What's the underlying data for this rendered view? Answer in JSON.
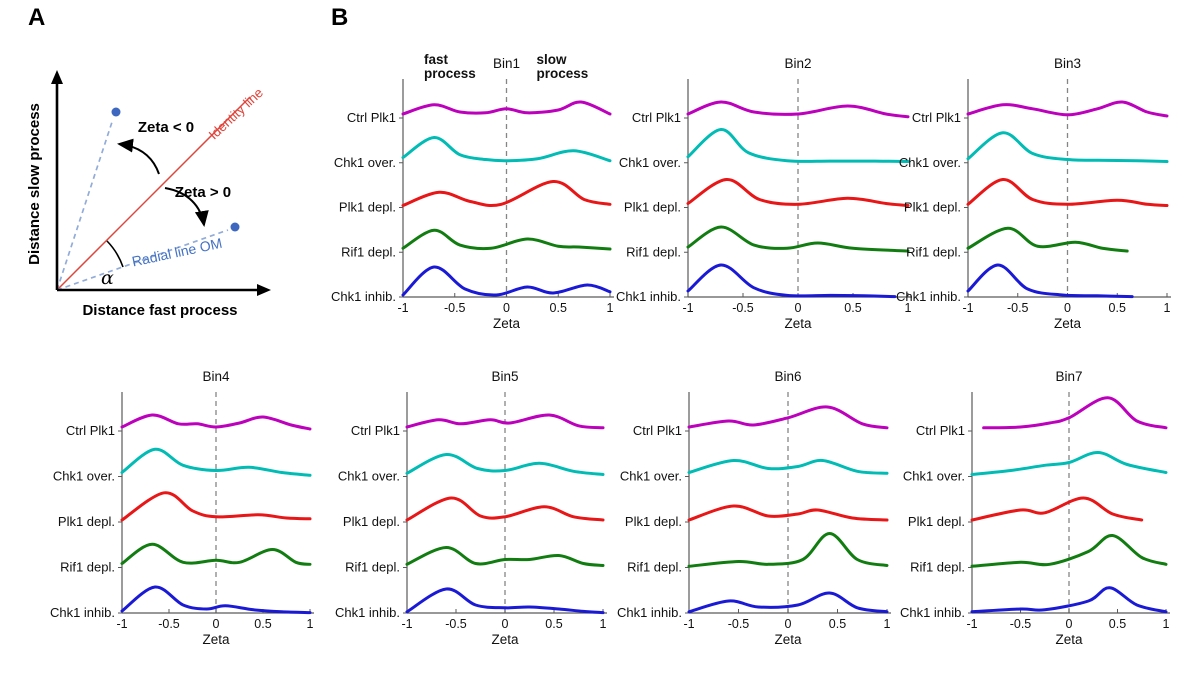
{
  "panel_a": {
    "label": "A",
    "y_axis_label": "Distance slow process",
    "x_axis_label": "Distance fast process",
    "identity_line_label": "Identity line",
    "radial_line_label": "Radial line OM",
    "zeta_negative": "Zeta < 0",
    "zeta_positive": "Zeta > 0",
    "alpha": "α",
    "colors": {
      "identity": "#E0453C",
      "radial_line": "#92ACD9",
      "radial_text": "#4472C4",
      "point": "#3E68C0",
      "axis": "#000000"
    }
  },
  "panel_b": {
    "label": "B"
  },
  "chart_data": {
    "type": "ridgeline",
    "title": "Zeta distributions per replication timing bin",
    "xlabel": "Zeta",
    "x_range": [
      -1,
      1
    ],
    "x_ticks": [
      -1,
      -0.5,
      0,
      0.5,
      1
    ],
    "x_tick_labels": [
      "-1",
      "-0.5",
      "0",
      "0.5",
      "1"
    ],
    "zero_line": 0,
    "grid": false,
    "annotations": {
      "fast_line1": "fast",
      "fast_line2": "process",
      "slow_line1": "slow",
      "slow_line2": "process"
    },
    "conditions": [
      {
        "label": "Ctrl Plk1",
        "color": "#BC00BC"
      },
      {
        "label": "Chk1 over.",
        "color": "#00BCB4"
      },
      {
        "label": "Plk1 depl.",
        "color": "#E81616"
      },
      {
        "label": "Rif1 depl.",
        "color": "#117D11"
      },
      {
        "label": "Chk1 inhib.",
        "color": "#1A1AD6"
      }
    ],
    "bins": [
      {
        "label": "Bin1",
        "series": [
          [
            [
              -1,
              0.1
            ],
            [
              -0.7,
              0.33
            ],
            [
              -0.45,
              0.15
            ],
            [
              -0.2,
              0.13
            ],
            [
              0,
              0.23
            ],
            [
              0.2,
              0.13
            ],
            [
              0.5,
              0.2
            ],
            [
              0.72,
              0.4
            ],
            [
              1,
              0.1
            ]
          ],
          [
            [
              -1,
              0.13
            ],
            [
              -0.7,
              0.63
            ],
            [
              -0.45,
              0.2
            ],
            [
              -0.2,
              0.08
            ],
            [
              0,
              0.05
            ],
            [
              0.3,
              0.1
            ],
            [
              0.65,
              0.3
            ],
            [
              1,
              0.05
            ]
          ],
          [
            [
              -1,
              0.05
            ],
            [
              -0.65,
              0.38
            ],
            [
              -0.35,
              0.15
            ],
            [
              -0.05,
              0.08
            ],
            [
              0.45,
              0.65
            ],
            [
              0.75,
              0.2
            ],
            [
              1,
              0.08
            ]
          ],
          [
            [
              -1,
              0.1
            ],
            [
              -0.7,
              0.55
            ],
            [
              -0.45,
              0.18
            ],
            [
              -0.15,
              0.1
            ],
            [
              0.2,
              0.33
            ],
            [
              0.5,
              0.15
            ],
            [
              0.7,
              0.13
            ],
            [
              1,
              0.08
            ]
          ],
          [
            [
              -1,
              0.05
            ],
            [
              -0.7,
              0.75
            ],
            [
              -0.4,
              0.2
            ],
            [
              -0.1,
              0.05
            ],
            [
              0.2,
              0.25
            ],
            [
              0.45,
              0.1
            ],
            [
              0.78,
              0.3
            ],
            [
              1,
              0.13
            ]
          ]
        ]
      },
      {
        "label": "Bin2",
        "series": [
          [
            [
              -1,
              0.1
            ],
            [
              -0.7,
              0.4
            ],
            [
              -0.4,
              0.15
            ],
            [
              0,
              0.1
            ],
            [
              0.45,
              0.3
            ],
            [
              0.8,
              0.1
            ],
            [
              1,
              0.03
            ]
          ],
          [
            [
              -1,
              0.15
            ],
            [
              -0.7,
              0.83
            ],
            [
              -0.45,
              0.25
            ],
            [
              -0.1,
              0.05
            ],
            [
              0.3,
              0.04
            ],
            [
              0.7,
              0.04
            ],
            [
              1,
              0.03
            ]
          ],
          [
            [
              -1,
              0.1
            ],
            [
              -0.65,
              0.7
            ],
            [
              -0.35,
              0.2
            ],
            [
              0,
              0.08
            ],
            [
              0.45,
              0.23
            ],
            [
              0.8,
              0.1
            ],
            [
              1,
              0.05
            ]
          ],
          [
            [
              -1,
              0.13
            ],
            [
              -0.7,
              0.63
            ],
            [
              -0.4,
              0.18
            ],
            [
              -0.1,
              0.1
            ],
            [
              0.18,
              0.23
            ],
            [
              0.5,
              0.1
            ],
            [
              1,
              0.03
            ]
          ],
          [
            [
              -1,
              0.15
            ],
            [
              -0.7,
              0.8
            ],
            [
              -0.4,
              0.23
            ],
            [
              -0.1,
              0.04
            ],
            [
              0.3,
              0.04
            ],
            [
              0.6,
              0.03
            ],
            [
              0.88,
              0.01
            ]
          ]
        ]
      },
      {
        "label": "Bin3",
        "series": [
          [
            [
              -1,
              0.1
            ],
            [
              -0.65,
              0.33
            ],
            [
              -0.35,
              0.23
            ],
            [
              0,
              0.08
            ],
            [
              0.3,
              0.23
            ],
            [
              0.55,
              0.4
            ],
            [
              0.8,
              0.15
            ],
            [
              1,
              0.05
            ]
          ],
          [
            [
              -1,
              0.1
            ],
            [
              -0.65,
              0.75
            ],
            [
              -0.35,
              0.23
            ],
            [
              0,
              0.08
            ],
            [
              0.4,
              0.06
            ],
            [
              0.7,
              0.05
            ],
            [
              1,
              0.03
            ]
          ],
          [
            [
              -1,
              0.08
            ],
            [
              -0.65,
              0.7
            ],
            [
              -0.35,
              0.2
            ],
            [
              0,
              0.08
            ],
            [
              0.5,
              0.18
            ],
            [
              0.8,
              0.08
            ],
            [
              1,
              0.05
            ]
          ],
          [
            [
              -1,
              0.1
            ],
            [
              -0.6,
              0.6
            ],
            [
              -0.3,
              0.15
            ],
            [
              0.08,
              0.25
            ],
            [
              0.35,
              0.1
            ],
            [
              0.6,
              0.03
            ]
          ],
          [
            [
              -1,
              0.15
            ],
            [
              -0.7,
              0.8
            ],
            [
              -0.4,
              0.2
            ],
            [
              -0.05,
              0.05
            ],
            [
              0.3,
              0.03
            ],
            [
              0.65,
              0.01
            ]
          ]
        ]
      },
      {
        "label": "Bin4",
        "series": [
          [
            [
              -1,
              0.1
            ],
            [
              -0.68,
              0.4
            ],
            [
              -0.4,
              0.18
            ],
            [
              -0.2,
              0.18
            ],
            [
              0,
              0.1
            ],
            [
              0.25,
              0.2
            ],
            [
              0.5,
              0.35
            ],
            [
              0.8,
              0.15
            ],
            [
              1,
              0.05
            ]
          ],
          [
            [
              -1,
              0.1
            ],
            [
              -0.65,
              0.68
            ],
            [
              -0.35,
              0.28
            ],
            [
              0,
              0.15
            ],
            [
              0.35,
              0.23
            ],
            [
              0.7,
              0.1
            ],
            [
              1,
              0.03
            ]
          ],
          [
            [
              -1,
              0.05
            ],
            [
              -0.55,
              0.73
            ],
            [
              -0.25,
              0.28
            ],
            [
              0,
              0.13
            ],
            [
              0.45,
              0.18
            ],
            [
              0.75,
              0.1
            ],
            [
              1,
              0.08
            ]
          ],
          [
            [
              -1,
              0.1
            ],
            [
              -0.68,
              0.58
            ],
            [
              -0.35,
              0.13
            ],
            [
              0,
              0.18
            ],
            [
              0.25,
              0.13
            ],
            [
              0.6,
              0.45
            ],
            [
              0.85,
              0.13
            ],
            [
              1,
              0.08
            ]
          ],
          [
            [
              -1,
              0.05
            ],
            [
              -0.65,
              0.65
            ],
            [
              -0.35,
              0.2
            ],
            [
              -0.1,
              0.1
            ],
            [
              0.1,
              0.18
            ],
            [
              0.4,
              0.08
            ],
            [
              0.7,
              0.03
            ],
            [
              1,
              0.01
            ]
          ]
        ]
      },
      {
        "label": "Bin5",
        "series": [
          [
            [
              -1,
              0.1
            ],
            [
              -0.68,
              0.28
            ],
            [
              -0.45,
              0.18
            ],
            [
              -0.15,
              0.28
            ],
            [
              0.05,
              0.2
            ],
            [
              0.45,
              0.4
            ],
            [
              0.75,
              0.13
            ],
            [
              1,
              0.08
            ]
          ],
          [
            [
              -1,
              0.08
            ],
            [
              -0.6,
              0.55
            ],
            [
              -0.28,
              0.2
            ],
            [
              0,
              0.15
            ],
            [
              0.35,
              0.33
            ],
            [
              0.7,
              0.13
            ],
            [
              1,
              0.05
            ]
          ],
          [
            [
              -1,
              0.05
            ],
            [
              -0.55,
              0.6
            ],
            [
              -0.25,
              0.15
            ],
            [
              0,
              0.13
            ],
            [
              0.4,
              0.38
            ],
            [
              0.7,
              0.13
            ],
            [
              1,
              0.05
            ]
          ],
          [
            [
              -1,
              0.08
            ],
            [
              -0.6,
              0.5
            ],
            [
              -0.3,
              0.1
            ],
            [
              0,
              0.2
            ],
            [
              0.25,
              0.2
            ],
            [
              0.55,
              0.3
            ],
            [
              0.8,
              0.1
            ],
            [
              1,
              0.05
            ]
          ],
          [
            [
              -1,
              0.03
            ],
            [
              -0.6,
              0.6
            ],
            [
              -0.3,
              0.2
            ],
            [
              0,
              0.13
            ],
            [
              0.25,
              0.15
            ],
            [
              0.55,
              0.1
            ],
            [
              0.8,
              0.04
            ],
            [
              1,
              0.01
            ]
          ]
        ]
      },
      {
        "label": "Bin6",
        "series": [
          [
            [
              -1,
              0.1
            ],
            [
              -0.6,
              0.25
            ],
            [
              -0.35,
              0.15
            ],
            [
              0,
              0.33
            ],
            [
              0.4,
              0.6
            ],
            [
              0.75,
              0.18
            ],
            [
              1,
              0.08
            ]
          ],
          [
            [
              -1,
              0.1
            ],
            [
              -0.55,
              0.4
            ],
            [
              -0.2,
              0.2
            ],
            [
              0.1,
              0.25
            ],
            [
              0.35,
              0.4
            ],
            [
              0.7,
              0.13
            ],
            [
              1,
              0.08
            ]
          ],
          [
            [
              -1,
              0.05
            ],
            [
              -0.55,
              0.4
            ],
            [
              -0.2,
              0.15
            ],
            [
              0.1,
              0.2
            ],
            [
              0.3,
              0.3
            ],
            [
              0.65,
              0.1
            ],
            [
              1,
              0.05
            ]
          ],
          [
            [
              -1,
              0.03
            ],
            [
              -0.5,
              0.15
            ],
            [
              -0.2,
              0.08
            ],
            [
              0.15,
              0.2
            ],
            [
              0.42,
              0.85
            ],
            [
              0.7,
              0.2
            ],
            [
              1,
              0.05
            ]
          ],
          [
            [
              -1,
              0.03
            ],
            [
              -0.6,
              0.3
            ],
            [
              -0.3,
              0.15
            ],
            [
              0.1,
              0.2
            ],
            [
              0.42,
              0.5
            ],
            [
              0.7,
              0.13
            ],
            [
              1,
              0.03
            ]
          ]
        ]
      },
      {
        "label": "Bin7",
        "series": [
          [
            [
              -0.88,
              0.08
            ],
            [
              -0.5,
              0.1
            ],
            [
              -0.2,
              0.2
            ],
            [
              0,
              0.33
            ],
            [
              0.4,
              0.83
            ],
            [
              0.7,
              0.25
            ],
            [
              1,
              0.08
            ]
          ],
          [
            [
              -1,
              0.05
            ],
            [
              -0.6,
              0.15
            ],
            [
              -0.25,
              0.28
            ],
            [
              0,
              0.35
            ],
            [
              0.3,
              0.6
            ],
            [
              0.6,
              0.3
            ],
            [
              1,
              0.1
            ]
          ],
          [
            [
              -1,
              0.05
            ],
            [
              -0.5,
              0.3
            ],
            [
              -0.25,
              0.23
            ],
            [
              0.15,
              0.6
            ],
            [
              0.45,
              0.2
            ],
            [
              0.75,
              0.05
            ]
          ],
          [
            [
              -1,
              0.03
            ],
            [
              -0.5,
              0.13
            ],
            [
              -0.2,
              0.08
            ],
            [
              0.2,
              0.4
            ],
            [
              0.45,
              0.8
            ],
            [
              0.75,
              0.25
            ],
            [
              1,
              0.08
            ]
          ],
          [
            [
              -1,
              0.03
            ],
            [
              -0.5,
              0.1
            ],
            [
              -0.25,
              0.08
            ],
            [
              0.2,
              0.3
            ],
            [
              0.42,
              0.63
            ],
            [
              0.7,
              0.2
            ],
            [
              1,
              0.03
            ]
          ]
        ]
      }
    ]
  }
}
